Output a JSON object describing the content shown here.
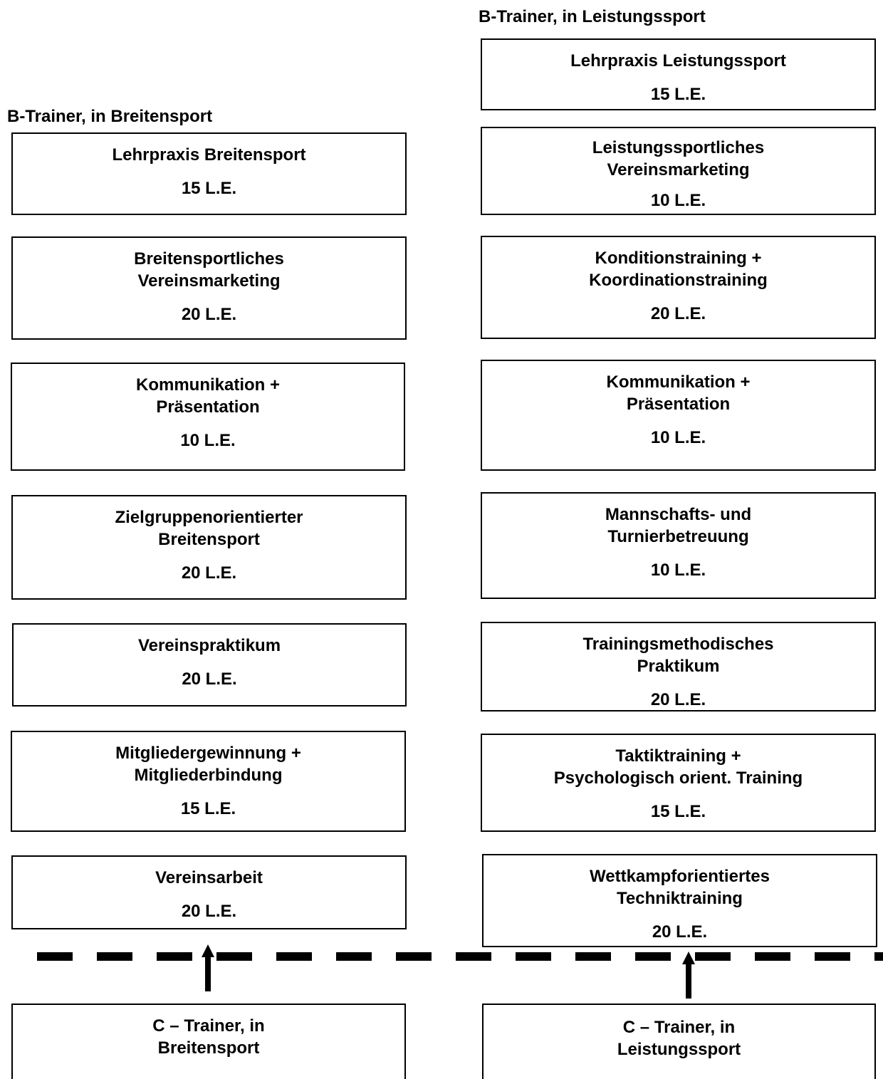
{
  "left_column": {
    "heading": "B-Trainer, in Breitensport",
    "modules": [
      {
        "title": "Lehrpraxis Breitensport",
        "units": "15 L.E."
      },
      {
        "title": "Breitensportliches\nVereinsmarketing",
        "units": "20 L.E."
      },
      {
        "title": "Kommunikation +\nPräsentation",
        "units": "10 L.E."
      },
      {
        "title": "Zielgruppenorientierter\nBreitensport",
        "units": "20 L.E."
      },
      {
        "title": "Vereinspraktikum",
        "units": "20 L.E."
      },
      {
        "title": "Mitgliedergewinnung +\nMitgliederbindung",
        "units": "15 L.E."
      },
      {
        "title": "Vereinsarbeit",
        "units": "20 L.E."
      }
    ],
    "prerequisite": "C – Trainer, in\nBreitensport"
  },
  "right_column": {
    "heading": "B-Trainer, in Leistungssport",
    "modules": [
      {
        "title": "Lehrpraxis Leistungssport",
        "units": "15 L.E."
      },
      {
        "title": "Leistungssportliches\nVereinsmarketing",
        "units": "10 L.E."
      },
      {
        "title": "Konditionstraining +\nKoordinationstraining",
        "units": "20 L.E."
      },
      {
        "title": "Kommunikation +\nPräsentation",
        "units": "10 L.E."
      },
      {
        "title": "Mannschafts- und\nTurnierbetreuung",
        "units": "10 L.E."
      },
      {
        "title": "Trainingsmethodisches\nPraktikum",
        "units": "20 L.E."
      },
      {
        "title": "Taktiktraining +\nPsychologisch orient. Training",
        "units": "15 L.E."
      },
      {
        "title": "Wettkampforientiertes\nTechniktraining",
        "units": "20 L.E."
      }
    ],
    "prerequisite": "C – Trainer, in\nLeistungssport"
  }
}
